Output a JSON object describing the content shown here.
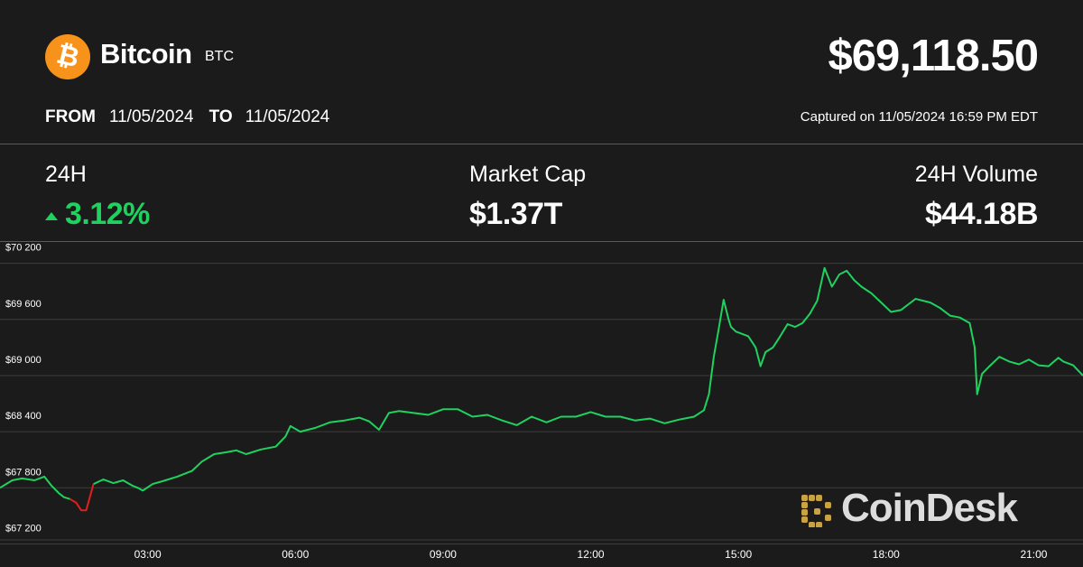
{
  "header": {
    "coin_name": "Bitcoin",
    "ticker": "BTC",
    "logo_glyph": "₿",
    "logo_color": "#f7931a",
    "logo_icon": "bitcoin-logo-icon",
    "price": "$69,118.50",
    "from_label": "FROM",
    "from_date": "11/05/2024",
    "to_label": "TO",
    "to_date": "11/05/2024",
    "captured": "Captured on 11/05/2024 16:59 PM EDT"
  },
  "stats": {
    "change_label": "24H",
    "change_value": "3.12%",
    "change_color": "#1fd25f",
    "change_icon": "up-arrow-icon",
    "market_cap_label": "Market Cap",
    "market_cap_value": "$1.37T",
    "volume_label": "24H Volume",
    "volume_value": "$44.18B"
  },
  "watermark": {
    "text": "CoinDesk",
    "icon": "coindesk-logo-icon",
    "color": "#c9a243"
  },
  "chart_data": {
    "type": "line",
    "title": "",
    "xlabel": "",
    "ylabel": "",
    "grid": true,
    "ylim": [
      67050,
      70370
    ],
    "xlim": [
      0.0,
      22.0
    ],
    "y_ticks": [
      67200,
      67800,
      68400,
      69000,
      69600,
      70200
    ],
    "y_tick_labels": [
      "$67 200",
      "$67 800",
      "$68 400",
      "$69 000",
      "$69 600",
      "$70 200"
    ],
    "x_ticks": [
      3,
      6,
      9,
      12,
      15,
      18,
      21
    ],
    "x_tick_labels": [
      "03:00",
      "06:00",
      "09:00",
      "12:00",
      "15:00",
      "18:00",
      "21:00"
    ],
    "colors": {
      "up": "#1fd25f",
      "down": "#e01f1f"
    },
    "series": [
      {
        "x": [
          0.0,
          0.25,
          0.45,
          0.7,
          0.9,
          1.05,
          1.2,
          1.3,
          1.42,
          1.55,
          1.65,
          1.75,
          1.9,
          2.1,
          2.3,
          2.5,
          2.7,
          2.8,
          2.9,
          3.1,
          3.3,
          3.6,
          3.9,
          4.1,
          4.35,
          4.6,
          4.8,
          5.0,
          5.3,
          5.6,
          5.8,
          5.9,
          6.1,
          6.4,
          6.7,
          7.0,
          7.3,
          7.5,
          7.7,
          7.9,
          8.1,
          8.4,
          8.7,
          9.0,
          9.3,
          9.6,
          9.9,
          10.2,
          10.5,
          10.8,
          11.1,
          11.4,
          11.7,
          12.0,
          12.3,
          12.6,
          12.9,
          13.2,
          13.5,
          13.8,
          14.1,
          14.3,
          14.4,
          14.5,
          14.6,
          14.7,
          14.8,
          14.85,
          14.95,
          15.05,
          15.2,
          15.35,
          15.45,
          15.55,
          15.7,
          15.85,
          16.0,
          16.15,
          16.3,
          16.45,
          16.6,
          16.75,
          16.9,
          17.05,
          17.2,
          17.35,
          17.5,
          17.7,
          17.9,
          18.1,
          18.3,
          18.6,
          18.9,
          19.1,
          19.3,
          19.5,
          19.7,
          19.8,
          19.85,
          19.95,
          20.1,
          20.3,
          20.5,
          20.7,
          20.9,
          21.1,
          21.3,
          21.5,
          21.6,
          21.8,
          22.0
        ],
        "y": [
          67800,
          67880,
          67900,
          67880,
          67920,
          67820,
          67740,
          67700,
          67680,
          67640,
          67560,
          67560,
          67840,
          67890,
          67850,
          67880,
          67820,
          67800,
          67770,
          67840,
          67870,
          67920,
          67980,
          68080,
          68160,
          68180,
          68200,
          68160,
          68210,
          68240,
          68350,
          68460,
          68400,
          68440,
          68500,
          68520,
          68550,
          68510,
          68420,
          68600,
          68620,
          68600,
          68580,
          68640,
          68640,
          68560,
          68580,
          68520,
          68470,
          68560,
          68500,
          68560,
          68560,
          68610,
          68560,
          68560,
          68520,
          68540,
          68490,
          68530,
          68560,
          68630,
          68800,
          69200,
          69500,
          69810,
          69600,
          69520,
          69470,
          69450,
          69420,
          69300,
          69100,
          69250,
          69300,
          69420,
          69550,
          69520,
          69560,
          69660,
          69800,
          70150,
          69950,
          70080,
          70120,
          70020,
          69950,
          69880,
          69780,
          69680,
          69700,
          69820,
          69780,
          69720,
          69640,
          69620,
          69560,
          69300,
          68800,
          69020,
          69100,
          69200,
          69150,
          69120,
          69170,
          69110,
          69100,
          69190,
          69150,
          69110,
          69000
        ]
      }
    ]
  }
}
